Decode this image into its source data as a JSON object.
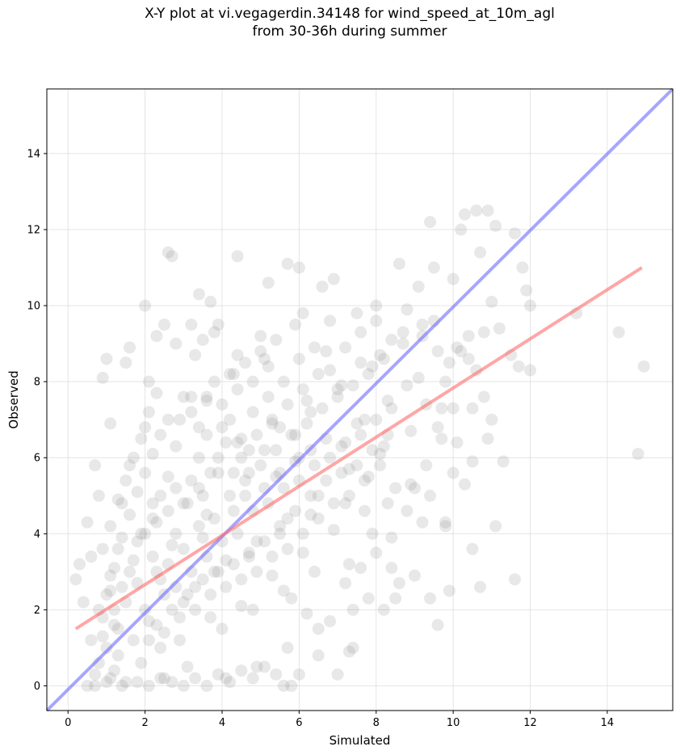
{
  "chart_data": {
    "type": "scatter",
    "title_line1": "X-Y plot at vi.vegagerdin.34148 for wind_speed_at_10m_agl",
    "title_line2": "from 30-36h during summer",
    "xlabel": "Simulated",
    "ylabel": "Observed",
    "xlim": [
      -0.55,
      15.7
    ],
    "ylim": [
      -0.65,
      15.7
    ],
    "xticks": [
      0,
      2,
      4,
      6,
      8,
      10,
      12,
      14
    ],
    "yticks": [
      0,
      2,
      4,
      6,
      8,
      10,
      12,
      14
    ],
    "grid": true,
    "point_color": "#808080",
    "identity_line": {
      "x": [
        -0.55,
        15.7
      ],
      "y": [
        -0.65,
        15.7
      ],
      "color": "#6b6bff"
    },
    "fit_line": {
      "x": [
        0.2,
        14.9
      ],
      "y": [
        1.5,
        11.0
      ],
      "color": "#ff6b6b"
    },
    "points": [
      [
        0.2,
        2.8
      ],
      [
        0.3,
        3.2
      ],
      [
        0.4,
        2.2
      ],
      [
        0.5,
        4.3
      ],
      [
        0.6,
        3.4
      ],
      [
        0.7,
        5.8
      ],
      [
        0.8,
        5.0
      ],
      [
        0.9,
        8.1
      ],
      [
        1.0,
        8.6
      ],
      [
        1.1,
        6.9
      ],
      [
        0.6,
        1.2
      ],
      [
        0.8,
        0.6
      ],
      [
        0.9,
        1.8
      ],
      [
        1.0,
        0.1
      ],
      [
        1.2,
        0.4
      ],
      [
        1.3,
        1.5
      ],
      [
        1.1,
        2.5
      ],
      [
        1.3,
        3.6
      ],
      [
        1.4,
        4.8
      ],
      [
        1.6,
        5.8
      ],
      [
        1.5,
        8.5
      ],
      [
        1.6,
        8.9
      ],
      [
        1.2,
        2.0
      ],
      [
        1.5,
        0.1
      ],
      [
        1.7,
        1.2
      ],
      [
        1.8,
        2.7
      ],
      [
        1.9,
        4.0
      ],
      [
        2.0,
        6.8
      ],
      [
        2.0,
        10.0
      ],
      [
        2.1,
        8.0
      ],
      [
        2.2,
        4.8
      ],
      [
        2.3,
        3.0
      ],
      [
        2.4,
        1.0
      ],
      [
        2.5,
        0.2
      ],
      [
        2.3,
        9.2
      ],
      [
        2.5,
        9.5
      ],
      [
        2.6,
        11.4
      ],
      [
        2.7,
        11.3
      ],
      [
        2.8,
        9.0
      ],
      [
        2.9,
        7.0
      ],
      [
        2.6,
        5.5
      ],
      [
        2.8,
        4.0
      ],
      [
        3.0,
        2.2
      ],
      [
        3.1,
        0.5
      ],
      [
        3.2,
        9.5
      ],
      [
        3.3,
        8.7
      ],
      [
        3.4,
        10.3
      ],
      [
        3.5,
        9.1
      ],
      [
        3.6,
        7.6
      ],
      [
        3.7,
        10.1
      ],
      [
        3.8,
        9.3
      ],
      [
        3.9,
        9.5
      ],
      [
        3.4,
        6.0
      ],
      [
        3.6,
        4.5
      ],
      [
        3.8,
        3.0
      ],
      [
        4.0,
        1.5
      ],
      [
        4.1,
        0.2
      ],
      [
        4.2,
        7.0
      ],
      [
        4.3,
        8.2
      ],
      [
        4.4,
        8.7
      ],
      [
        4.5,
        6.5
      ],
      [
        4.6,
        5.0
      ],
      [
        4.7,
        3.5
      ],
      [
        4.8,
        2.0
      ],
      [
        4.9,
        0.5
      ],
      [
        4.4,
        11.3
      ],
      [
        5.0,
        9.2
      ],
      [
        5.1,
        8.6
      ],
      [
        5.2,
        10.6
      ],
      [
        5.3,
        7.0
      ],
      [
        5.4,
        5.5
      ],
      [
        5.5,
        4.0
      ],
      [
        5.6,
        2.5
      ],
      [
        5.7,
        1.0
      ],
      [
        5.8,
        0.0
      ],
      [
        5.7,
        11.1
      ],
      [
        5.9,
        9.5
      ],
      [
        6.0,
        11.0
      ],
      [
        6.1,
        9.8
      ],
      [
        6.2,
        7.5
      ],
      [
        6.0,
        6.0
      ],
      [
        6.3,
        4.5
      ],
      [
        6.4,
        3.0
      ],
      [
        6.5,
        1.5
      ],
      [
        6.6,
        10.5
      ],
      [
        6.7,
        8.8
      ],
      [
        6.8,
        9.6
      ],
      [
        6.9,
        10.7
      ],
      [
        7.0,
        7.8
      ],
      [
        7.1,
        6.3
      ],
      [
        7.2,
        4.8
      ],
      [
        7.3,
        3.2
      ],
      [
        7.4,
        1.0
      ],
      [
        7.5,
        9.8
      ],
      [
        7.6,
        8.5
      ],
      [
        7.7,
        7.0
      ],
      [
        7.8,
        5.5
      ],
      [
        7.9,
        4.0
      ],
      [
        8.0,
        10.0
      ],
      [
        8.1,
        8.7
      ],
      [
        8.2,
        6.3
      ],
      [
        8.3,
        4.8
      ],
      [
        8.4,
        3.1
      ],
      [
        8.5,
        2.3
      ],
      [
        8.6,
        11.1
      ],
      [
        8.7,
        9.3
      ],
      [
        8.8,
        7.9
      ],
      [
        8.9,
        5.3
      ],
      [
        9.0,
        2.9
      ],
      [
        9.1,
        10.5
      ],
      [
        9.2,
        9.2
      ],
      [
        9.3,
        7.4
      ],
      [
        9.4,
        12.2
      ],
      [
        9.5,
        11.0
      ],
      [
        9.6,
        8.8
      ],
      [
        9.7,
        6.5
      ],
      [
        9.8,
        4.3
      ],
      [
        9.9,
        2.5
      ],
      [
        10.0,
        10.7
      ],
      [
        10.1,
        8.9
      ],
      [
        10.2,
        12.0
      ],
      [
        10.3,
        12.4
      ],
      [
        10.4,
        9.2
      ],
      [
        10.5,
        7.3
      ],
      [
        10.6,
        12.5
      ],
      [
        10.7,
        11.4
      ],
      [
        10.8,
        9.3
      ],
      [
        10.9,
        12.5
      ],
      [
        11.0,
        10.1
      ],
      [
        11.1,
        12.1
      ],
      [
        11.2,
        9.4
      ],
      [
        11.3,
        5.9
      ],
      [
        11.5,
        8.7
      ],
      [
        11.6,
        11.9
      ],
      [
        11.7,
        8.4
      ],
      [
        11.8,
        11.0
      ],
      [
        11.9,
        10.4
      ],
      [
        12.0,
        10.0
      ],
      [
        12.0,
        8.3
      ],
      [
        10.5,
        3.6
      ],
      [
        10.7,
        2.6
      ],
      [
        11.1,
        4.2
      ],
      [
        11.6,
        2.8
      ],
      [
        10.3,
        5.3
      ],
      [
        9.6,
        1.6
      ],
      [
        9.4,
        2.3
      ],
      [
        13.2,
        9.8
      ],
      [
        14.3,
        9.3
      ],
      [
        14.8,
        6.1
      ],
      [
        14.95,
        8.4
      ],
      [
        0.5,
        0.0
      ],
      [
        0.7,
        0.3
      ],
      [
        0.9,
        1.3
      ],
      [
        1.1,
        2.9
      ],
      [
        1.3,
        0.8
      ],
      [
        1.5,
        2.2
      ],
      [
        1.7,
        3.3
      ],
      [
        1.9,
        0.6
      ],
      [
        2.1,
        1.7
      ],
      [
        2.3,
        4.3
      ],
      [
        2.5,
        2.4
      ],
      [
        2.7,
        3.7
      ],
      [
        2.9,
        1.2
      ],
      [
        3.1,
        4.8
      ],
      [
        3.3,
        2.6
      ],
      [
        3.5,
        3.9
      ],
      [
        3.7,
        1.8
      ],
      [
        3.9,
        5.6
      ],
      [
        4.1,
        3.3
      ],
      [
        4.3,
        4.6
      ],
      [
        4.5,
        2.1
      ],
      [
        4.7,
        6.2
      ],
      [
        4.9,
        3.8
      ],
      [
        5.1,
        5.2
      ],
      [
        5.3,
        2.9
      ],
      [
        5.5,
        6.8
      ],
      [
        5.7,
        4.4
      ],
      [
        5.9,
        5.9
      ],
      [
        6.1,
        3.5
      ],
      [
        6.3,
        7.2
      ],
      [
        6.5,
        5.0
      ],
      [
        6.7,
        6.5
      ],
      [
        6.9,
        4.1
      ],
      [
        7.1,
        7.9
      ],
      [
        7.3,
        5.7
      ],
      [
        7.5,
        6.9
      ],
      [
        7.7,
        4.6
      ],
      [
        7.9,
        8.4
      ],
      [
        8.1,
        6.1
      ],
      [
        8.3,
        7.5
      ],
      [
        8.5,
        5.2
      ],
      [
        8.7,
        9.0
      ],
      [
        8.9,
        6.7
      ],
      [
        9.1,
        8.1
      ],
      [
        9.3,
        5.8
      ],
      [
        9.5,
        9.6
      ],
      [
        9.7,
        7.3
      ],
      [
        9.9,
        8.5
      ],
      [
        10.1,
        6.4
      ],
      [
        1.0,
        1.0
      ],
      [
        1.2,
        1.6
      ],
      [
        1.4,
        2.6
      ],
      [
        1.6,
        3.0
      ],
      [
        1.8,
        3.8
      ],
      [
        2.0,
        2.0
      ],
      [
        2.2,
        3.4
      ],
      [
        2.4,
        2.8
      ],
      [
        2.6,
        3.2
      ],
      [
        2.8,
        2.6
      ],
      [
        3.0,
        3.6
      ],
      [
        3.2,
        3.0
      ],
      [
        3.4,
        4.2
      ],
      [
        3.6,
        3.4
      ],
      [
        3.8,
        4.4
      ],
      [
        4.0,
        3.8
      ],
      [
        4.2,
        5.0
      ],
      [
        4.4,
        4.0
      ],
      [
        4.6,
        5.4
      ],
      [
        4.8,
        4.6
      ],
      [
        5.0,
        5.8
      ],
      [
        5.2,
        4.8
      ],
      [
        5.4,
        6.2
      ],
      [
        5.6,
        5.2
      ],
      [
        5.8,
        6.6
      ],
      [
        6.0,
        5.4
      ],
      [
        6.2,
        6.9
      ],
      [
        6.4,
        5.8
      ],
      [
        6.6,
        7.3
      ],
      [
        6.8,
        6.0
      ],
      [
        7.0,
        7.6
      ],
      [
        7.2,
        6.4
      ],
      [
        7.4,
        7.9
      ],
      [
        7.6,
        6.6
      ],
      [
        7.8,
        8.2
      ],
      [
        8.0,
        7.0
      ],
      [
        8.2,
        8.6
      ],
      [
        8.4,
        7.3
      ],
      [
        0.8,
        2.0
      ],
      [
        1.0,
        2.4
      ],
      [
        1.2,
        3.1
      ],
      [
        1.4,
        3.9
      ],
      [
        1.6,
        4.5
      ],
      [
        1.8,
        5.1
      ],
      [
        2.0,
        5.6
      ],
      [
        2.2,
        6.1
      ],
      [
        2.4,
        6.6
      ],
      [
        2.6,
        7.0
      ],
      [
        2.8,
        6.3
      ],
      [
        3.0,
        7.6
      ],
      [
        3.2,
        7.6
      ],
      [
        3.4,
        6.8
      ],
      [
        3.6,
        7.5
      ],
      [
        3.8,
        8.0
      ],
      [
        4.0,
        7.4
      ],
      [
        4.2,
        8.2
      ],
      [
        4.4,
        7.8
      ],
      [
        4.6,
        8.5
      ],
      [
        4.8,
        8.0
      ],
      [
        5.0,
        8.8
      ],
      [
        5.2,
        8.4
      ],
      [
        5.4,
        9.1
      ],
      [
        0.7,
        0.0
      ],
      [
        1.1,
        0.2
      ],
      [
        1.4,
        0.0
      ],
      [
        1.8,
        0.1
      ],
      [
        2.1,
        0.0
      ],
      [
        2.4,
        0.2
      ],
      [
        2.7,
        0.1
      ],
      [
        3.0,
        0.0
      ],
      [
        3.3,
        0.2
      ],
      [
        3.6,
        0.0
      ],
      [
        3.9,
        0.3
      ],
      [
        4.2,
        0.1
      ],
      [
        4.5,
        0.4
      ],
      [
        4.8,
        0.2
      ],
      [
        5.1,
        0.5
      ],
      [
        5.4,
        0.3
      ],
      [
        5.6,
        0.0
      ],
      [
        6.0,
        0.3
      ],
      [
        6.5,
        0.8
      ],
      [
        7.0,
        0.3
      ],
      [
        7.3,
        0.9
      ],
      [
        6.8,
        1.7
      ],
      [
        6.2,
        1.9
      ],
      [
        5.8,
        2.3
      ],
      [
        3.5,
        5.0
      ],
      [
        3.7,
        5.6
      ],
      [
        3.9,
        6.0
      ],
      [
        4.1,
        6.4
      ],
      [
        4.3,
        5.6
      ],
      [
        4.5,
        6.0
      ],
      [
        4.7,
        5.6
      ],
      [
        4.9,
        6.6
      ],
      [
        5.1,
        6.2
      ],
      [
        5.3,
        6.9
      ],
      [
        5.5,
        5.6
      ],
      [
        5.7,
        7.4
      ],
      [
        5.9,
        6.6
      ],
      [
        6.1,
        7.8
      ],
      [
        6.3,
        6.2
      ],
      [
        6.5,
        8.2
      ],
      [
        2.0,
        4.0
      ],
      [
        2.2,
        4.4
      ],
      [
        2.4,
        5.0
      ],
      [
        2.6,
        4.6
      ],
      [
        2.8,
        5.2
      ],
      [
        3.0,
        4.8
      ],
      [
        3.2,
        5.4
      ],
      [
        3.4,
        5.2
      ],
      [
        2.1,
        1.2
      ],
      [
        2.3,
        1.6
      ],
      [
        2.5,
        1.4
      ],
      [
        2.7,
        2.0
      ],
      [
        2.9,
        1.8
      ],
      [
        3.1,
        2.4
      ],
      [
        3.3,
        2.0
      ],
      [
        3.5,
        2.8
      ],
      [
        3.7,
        2.4
      ],
      [
        3.9,
        3.0
      ],
      [
        4.1,
        2.6
      ],
      [
        4.3,
        3.2
      ],
      [
        4.5,
        2.8
      ],
      [
        4.7,
        3.4
      ],
      [
        4.9,
        3.0
      ],
      [
        5.1,
        3.8
      ],
      [
        5.3,
        3.4
      ],
      [
        5.5,
        4.2
      ],
      [
        5.7,
        3.6
      ],
      [
        5.9,
        4.6
      ],
      [
        6.1,
        4.0
      ],
      [
        6.3,
        5.0
      ],
      [
        6.5,
        4.4
      ],
      [
        6.7,
        5.4
      ],
      [
        6.9,
        4.8
      ],
      [
        7.1,
        5.6
      ],
      [
        7.3,
        5.0
      ],
      [
        7.5,
        5.8
      ],
      [
        7.7,
        5.4
      ],
      [
        7.9,
        6.2
      ],
      [
        8.1,
        5.8
      ],
      [
        8.3,
        6.6
      ],
      [
        7.2,
        2.7
      ],
      [
        7.6,
        3.1
      ],
      [
        8.0,
        3.5
      ],
      [
        8.4,
        3.9
      ],
      [
        8.8,
        4.6
      ],
      [
        9.2,
        4.3
      ],
      [
        8.6,
        2.7
      ],
      [
        8.2,
        2.0
      ],
      [
        7.8,
        2.3
      ],
      [
        7.4,
        2.0
      ],
      [
        9.0,
        5.2
      ],
      [
        9.4,
        5.0
      ],
      [
        9.8,
        4.2
      ],
      [
        10.0,
        5.6
      ],
      [
        9.6,
        6.8
      ],
      [
        9.8,
        8.0
      ],
      [
        10.0,
        7.3
      ],
      [
        10.4,
        8.6
      ],
      [
        10.2,
        8.8
      ],
      [
        10.6,
        8.3
      ],
      [
        10.8,
        7.6
      ],
      [
        11.0,
        7.0
      ],
      [
        10.9,
        6.5
      ],
      [
        10.5,
        5.9
      ],
      [
        0.9,
        3.6
      ],
      [
        1.1,
        4.2
      ],
      [
        1.3,
        4.9
      ],
      [
        1.5,
        5.4
      ],
      [
        1.7,
        6.0
      ],
      [
        1.9,
        6.5
      ],
      [
        2.1,
        7.2
      ],
      [
        2.3,
        7.7
      ],
      [
        3.2,
        7.2
      ],
      [
        3.6,
        6.6
      ],
      [
        4.0,
        6.8
      ],
      [
        4.4,
        6.4
      ],
      [
        4.8,
        7.2
      ],
      [
        5.2,
        7.6
      ],
      [
        5.6,
        8.0
      ],
      [
        6.0,
        8.6
      ],
      [
        6.4,
        8.9
      ],
      [
        6.8,
        8.3
      ],
      [
        7.2,
        8.9
      ],
      [
        7.6,
        9.3
      ],
      [
        8.0,
        9.6
      ],
      [
        8.4,
        9.1
      ],
      [
        8.8,
        9.9
      ],
      [
        9.2,
        9.5
      ]
    ]
  }
}
